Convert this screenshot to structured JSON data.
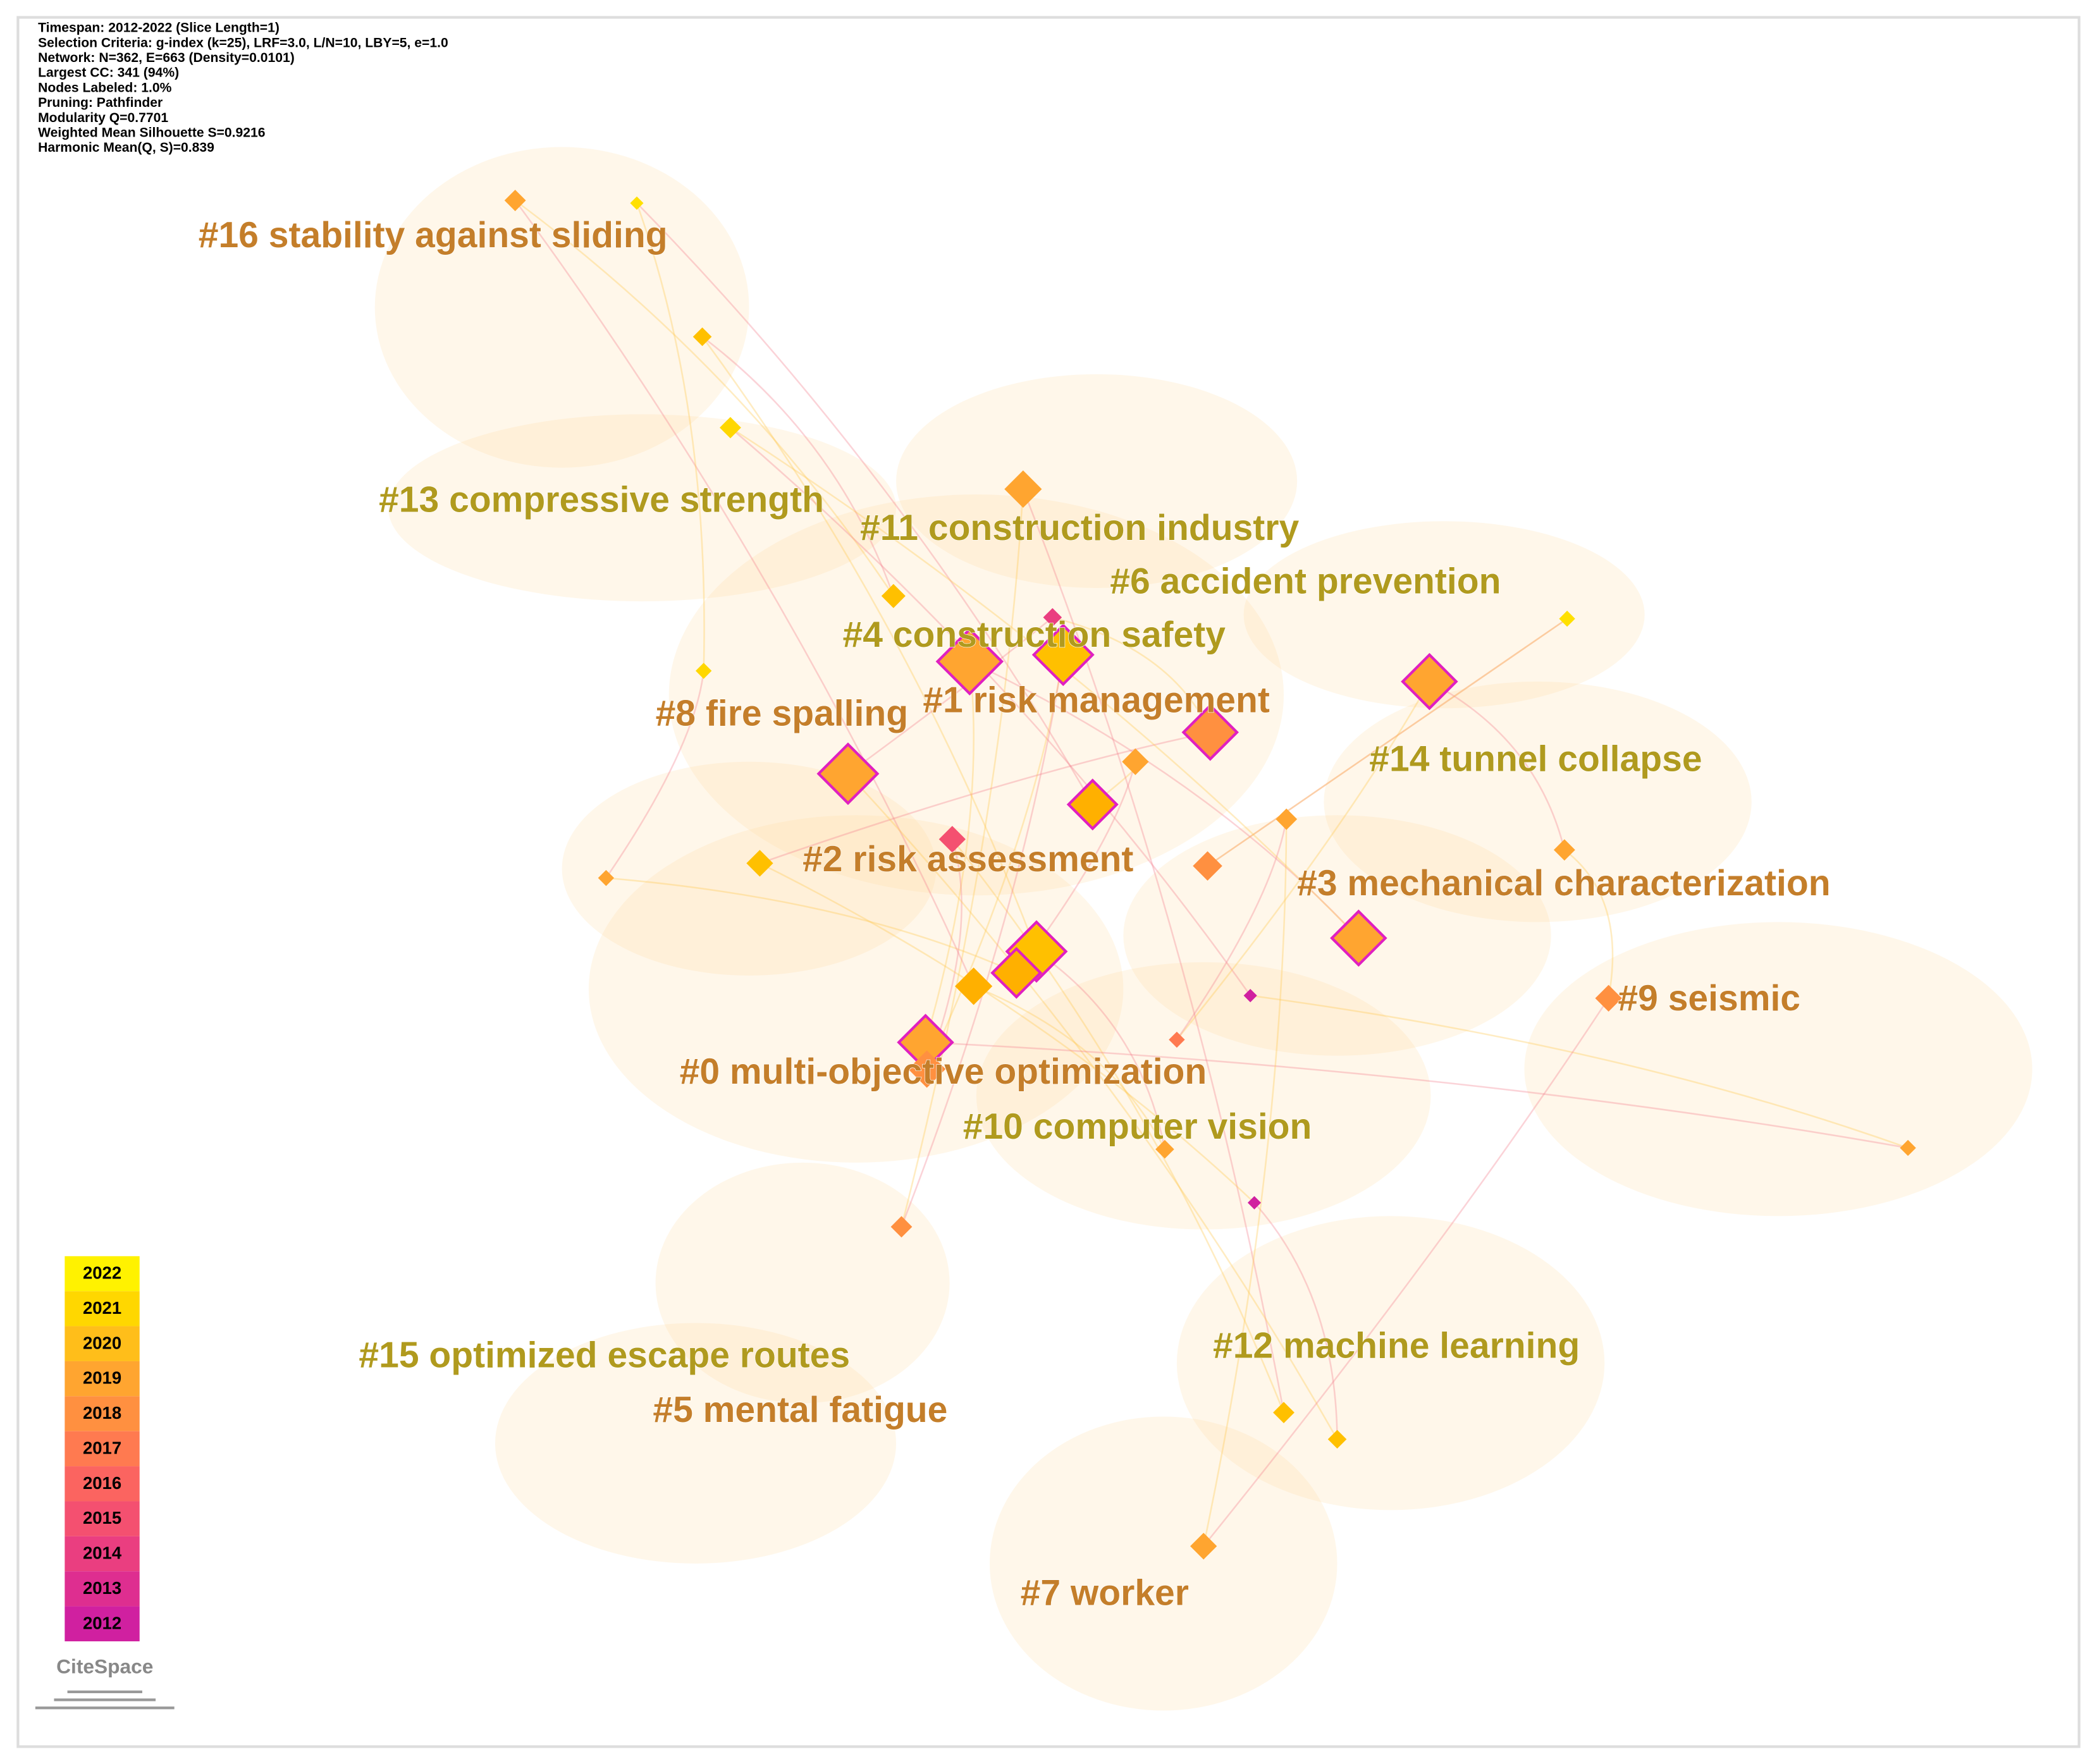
{
  "info": [
    "Timespan: 2012-2022 (Slice Length=1)",
    "Selection Criteria: g-index (k=25), LRF=3.0, L/N=10, LBY=5, e=1.0",
    "Network: N=362, E=663 (Density=0.0101)",
    "Largest CC: 341 (94%)",
    "Nodes Labeled: 1.0%",
    "Pruning: Pathfinder",
    "Modularity Q=0.7701",
    "Weighted Mean Silhouette S=0.9216",
    "Harmonic Mean(Q, S)=0.839"
  ],
  "clusters": [
    "#16 stability against sliding",
    "#13 compressive strength",
    "#11 construction industry",
    "#6 accident prevention",
    "#4 construction safety",
    "#1 risk management",
    "#8 fire spalling",
    "#14 tunnel collapse",
    "#2 risk assessment",
    "#3 mechanical characterization",
    "#9 seismic",
    "#0 multi-objective optimization",
    "#10 computer vision",
    "#12 machine learning",
    "#15 optimized escape routes",
    "#5 mental fatigue",
    "#7 worker"
  ],
  "legend": [
    {
      "year": "2022",
      "color": "#fff200"
    },
    {
      "year": "2021",
      "color": "#ffd700"
    },
    {
      "year": "2020",
      "color": "#ffbe1a"
    },
    {
      "year": "2019",
      "color": "#ffa530"
    },
    {
      "year": "2018",
      "color": "#ff9040"
    },
    {
      "year": "2017",
      "color": "#ff7a50"
    },
    {
      "year": "2016",
      "color": "#fb6460"
    },
    {
      "year": "2015",
      "color": "#f45070"
    },
    {
      "year": "2014",
      "color": "#ea3e80"
    },
    {
      "year": "2013",
      "color": "#de2e90"
    },
    {
      "year": "2012",
      "color": "#d020a0"
    }
  ],
  "logo": "CiteSpace"
}
